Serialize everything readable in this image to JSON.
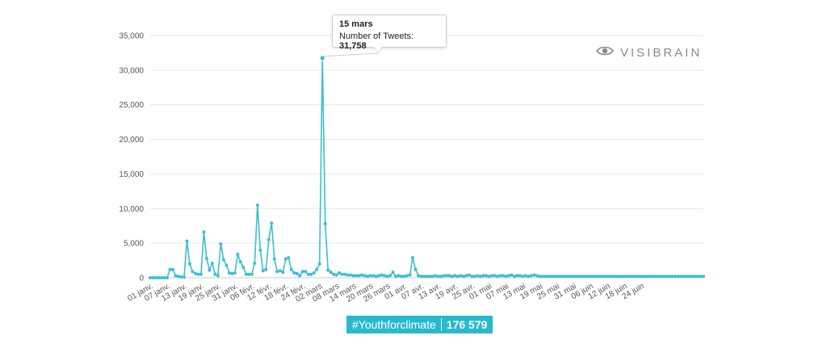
{
  "chart_data": {
    "type": "line",
    "color": "#3bbfd0",
    "x_tick_labels": [
      "01 janv.",
      "07 janv.",
      "13 janv.",
      "19 janv.",
      "25 janv.",
      "31 janv.",
      "06 févr.",
      "12 févr.",
      "18 févr.",
      "24 févr.",
      "02 mars",
      "08 mars",
      "14 mars",
      "20 mars",
      "26 mars",
      "01 avr.",
      "07 avr.",
      "13 avr.",
      "19 avr.",
      "25 avr.",
      "01 mai",
      "07 mai",
      "13 mai",
      "19 mai",
      "25 mai",
      "31 mai",
      "06 juin",
      "12 juin",
      "18 juin",
      "24 juin"
    ],
    "y_tick_labels": [
      "0",
      "5,000",
      "10,000",
      "15,000",
      "20,000",
      "25,000",
      "30,000",
      "35,000"
    ],
    "ylim": [
      0,
      35000
    ],
    "grid": true,
    "series": [
      {
        "values": [
          0,
          0,
          0,
          0,
          0,
          0,
          0,
          1200,
          1200,
          300,
          200,
          100,
          100,
          5300,
          2000,
          900,
          600,
          500,
          500,
          6600,
          2800,
          1100,
          2100,
          500,
          300,
          4900,
          2600,
          1800,
          700,
          600,
          700,
          3400,
          2300,
          1500,
          500,
          500,
          500,
          2100,
          10500,
          4000,
          1000,
          1200,
          5500,
          7900,
          2700,
          900,
          1000,
          800,
          2700,
          2900,
          1200,
          700,
          600,
          300,
          900,
          900,
          500,
          500,
          700,
          1200,
          2000,
          31758,
          7800,
          1100,
          800,
          500,
          400,
          700,
          500,
          500,
          400,
          400,
          300,
          300,
          300,
          400,
          300,
          200,
          300,
          300,
          200,
          300,
          400,
          300,
          200,
          300,
          800,
          200,
          300,
          200,
          200,
          300,
          400,
          2900,
          1200,
          300,
          200,
          200,
          200,
          200,
          200,
          300,
          200,
          200,
          300,
          300,
          300,
          200,
          300,
          200,
          300,
          200,
          300,
          400,
          200,
          200,
          300,
          200,
          300,
          300,
          200,
          300,
          300,
          200,
          300,
          300,
          200,
          300,
          400,
          200,
          300,
          300,
          200,
          300,
          200,
          300,
          400,
          300,
          200,
          200,
          200,
          200,
          200,
          200,
          200,
          200,
          200,
          200,
          200,
          200,
          200,
          200,
          200,
          200,
          200,
          200,
          200,
          200,
          200,
          200,
          200,
          200,
          200,
          200,
          200,
          200,
          200,
          200,
          200,
          200,
          200,
          200,
          200,
          200,
          200,
          200,
          200,
          200,
          200,
          200,
          200,
          200,
          200,
          200,
          200,
          200,
          200,
          200,
          200,
          200,
          200,
          200,
          200,
          200,
          200,
          200,
          200
        ]
      }
    ],
    "tooltip": {
      "date": "15 mars",
      "label": "Number of Tweets: ",
      "value": "31,758"
    }
  },
  "watermark": {
    "text": "VISIBRAIN",
    "icon": "eye-icon"
  },
  "hashtag_badge": {
    "tag": "#Youthforclimate",
    "count": "176 579",
    "color": "#29b9cd"
  }
}
